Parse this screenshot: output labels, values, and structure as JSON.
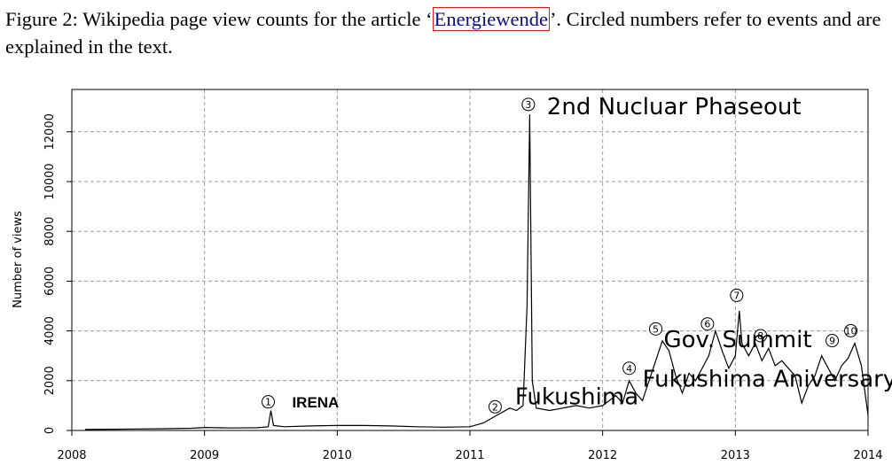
{
  "caption": {
    "prefix": "Figure 2: Wikipedia page view counts for the article ‘",
    "link_text": "Energiewende",
    "suffix": "’. Circled numbers refer to events and are explained in the text."
  },
  "chart_data": {
    "type": "line",
    "title": "",
    "xlabel": "",
    "ylabel": "Number of views",
    "xlim": [
      2008,
      2014
    ],
    "ylim": [
      0,
      12800
    ],
    "grid": true,
    "x_ticks": [
      "2008",
      "2009",
      "2010",
      "2011",
      "2012",
      "2013",
      "2014"
    ],
    "y_ticks": [
      "0",
      "2000",
      "4000",
      "6000",
      "8000",
      "10000",
      "12000"
    ],
    "series": [
      {
        "x": [
          2008.1,
          2008.3,
          2008.5,
          2008.7,
          2008.9,
          2009.0,
          2009.2,
          2009.4,
          2009.48,
          2009.5,
          2009.52,
          2009.6,
          2009.8,
          2010.0,
          2010.2,
          2010.4,
          2010.6,
          2010.8,
          2011.0,
          2011.1,
          2011.2,
          2011.3,
          2011.35,
          2011.4,
          2011.43,
          2011.45,
          2011.47,
          2011.5,
          2011.6,
          2011.7,
          2011.8,
          2011.9,
          2012.0,
          2012.1,
          2012.15,
          2012.2,
          2012.25,
          2012.3,
          2012.35,
          2012.4,
          2012.45,
          2012.5,
          2012.55,
          2012.6,
          2012.65,
          2012.7,
          2012.75,
          2012.8,
          2012.85,
          2012.9,
          2012.95,
          2013.0,
          2013.03,
          2013.05,
          2013.1,
          2013.15,
          2013.2,
          2013.25,
          2013.3,
          2013.35,
          2013.4,
          2013.45,
          2013.5,
          2013.55,
          2013.6,
          2013.65,
          2013.7,
          2013.75,
          2013.8,
          2013.85,
          2013.9,
          2013.95,
          2014.0
        ],
        "y": [
          40,
          50,
          60,
          70,
          90,
          120,
          100,
          110,
          150,
          800,
          200,
          150,
          180,
          200,
          200,
          180,
          150,
          130,
          150,
          300,
          600,
          900,
          800,
          1000,
          5000,
          12700,
          2000,
          900,
          800,
          900,
          1000,
          900,
          1000,
          1400,
          1100,
          2000,
          1500,
          1200,
          2000,
          2800,
          3600,
          3200,
          2200,
          1500,
          2300,
          2000,
          2500,
          3000,
          4000,
          3200,
          2500,
          3000,
          4800,
          3500,
          3000,
          3500,
          2800,
          3300,
          2600,
          2800,
          2500,
          2200,
          1100,
          1800,
          2200,
          3000,
          2500,
          2000,
          2600,
          2900,
          3500,
          2600,
          600
        ]
      }
    ],
    "event_markers": [
      {
        "num": "1",
        "x": 2009.48,
        "y": 1150
      },
      {
        "num": "2",
        "x": 2011.19,
        "y": 950
      },
      {
        "num": "3",
        "x": 2011.44,
        "y": 13100
      },
      {
        "num": "4",
        "x": 2012.2,
        "y": 2500
      },
      {
        "num": "5",
        "x": 2012.4,
        "y": 4080
      },
      {
        "num": "6",
        "x": 2012.79,
        "y": 4280
      },
      {
        "num": "7",
        "x": 2013.01,
        "y": 5430
      },
      {
        "num": "8",
        "x": 2013.19,
        "y": 3810
      },
      {
        "num": "9",
        "x": 2013.73,
        "y": 3610
      },
      {
        "num": "10",
        "x": 2013.87,
        "y": 4010
      }
    ],
    "annotations": [
      {
        "text": "IRENA",
        "x": 2009.66,
        "y": 930,
        "style": "bold"
      },
      {
        "text": "Fukushima",
        "x": 2011.34,
        "y": 1050,
        "style": "big"
      },
      {
        "text": "2nd Nucluar Phaseout",
        "x": 2011.58,
        "y": 12700,
        "style": "big"
      },
      {
        "text": "Fukushima Aniversary",
        "x": 2012.3,
        "y": 1760,
        "style": "big"
      },
      {
        "text": "Gov. Summit",
        "x": 2012.46,
        "y": 3350,
        "style": "big"
      }
    ]
  }
}
